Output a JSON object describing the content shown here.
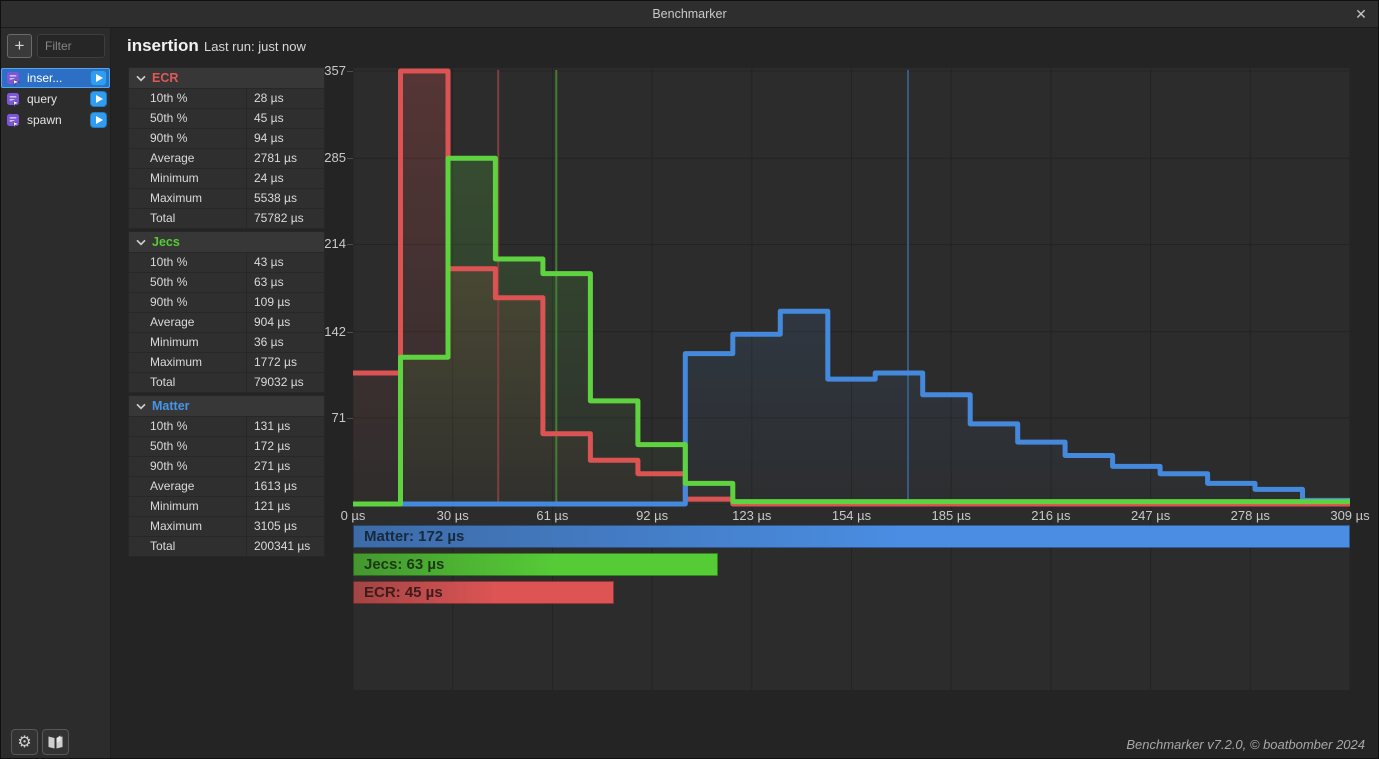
{
  "titlebar": {
    "title": "Benchmarker",
    "close_glyph": "✕"
  },
  "sidebar": {
    "add_label": "+",
    "filter_placeholder": "Filter",
    "item_icon": "benchmark-script-icon",
    "play_icon": "play-icon",
    "items": [
      {
        "label": "inser...",
        "selected": true
      },
      {
        "label": "query",
        "selected": false
      },
      {
        "label": "spawn",
        "selected": false
      }
    ]
  },
  "header": {
    "title": "insertion",
    "last_run": "Last run: just now"
  },
  "stats": {
    "row_labels": [
      "10th %",
      "50th %",
      "90th %",
      "Average",
      "Minimum",
      "Maximum",
      "Total"
    ],
    "sections": [
      {
        "name": "ECR",
        "color": "#e05858",
        "values": [
          "28 µs",
          "45 µs",
          "94 µs",
          "2781 µs",
          "24 µs",
          "5538 µs",
          "75782 µs"
        ]
      },
      {
        "name": "Jecs",
        "color": "#56cb33",
        "values": [
          "43 µs",
          "63 µs",
          "109 µs",
          "904 µs",
          "36 µs",
          "1772 µs",
          "79032 µs"
        ]
      },
      {
        "name": "Matter",
        "color": "#4596e8",
        "values": [
          "131 µs",
          "172 µs",
          "271 µs",
          "1613 µs",
          "121 µs",
          "3105 µs",
          "200341 µs"
        ]
      }
    ]
  },
  "chart_data": {
    "type": "histogram-step",
    "x_unit": "µs",
    "xlim": [
      0,
      309
    ],
    "ylim": [
      0,
      357
    ],
    "bin_count": 21,
    "bin_width_us": 14.71,
    "grid": true,
    "y_ticks": [
      {
        "value": 357,
        "label": "357"
      },
      {
        "value": 285,
        "label": "285"
      },
      {
        "value": 214,
        "label": "214"
      },
      {
        "value": 142,
        "label": "142"
      },
      {
        "value": 71,
        "label": "71"
      }
    ],
    "x_ticks": [
      {
        "us": 0,
        "label": "0 µs"
      },
      {
        "us": 30.9,
        "label": "30 µs"
      },
      {
        "us": 61.8,
        "label": "61 µs"
      },
      {
        "us": 92.7,
        "label": "92 µs"
      },
      {
        "us": 123.6,
        "label": "123 µs"
      },
      {
        "us": 154.5,
        "label": "154 µs"
      },
      {
        "us": 185.4,
        "label": "185 µs"
      },
      {
        "us": 216.3,
        "label": "216 µs"
      },
      {
        "us": 247.2,
        "label": "247 µs"
      },
      {
        "us": 278.1,
        "label": "278 µs"
      },
      {
        "us": 309,
        "label": "309 µs"
      }
    ],
    "series": [
      {
        "name": "ECR",
        "color": "#dc5353",
        "median_us": 45,
        "values": [
          108,
          357,
          194,
          170,
          58,
          36,
          25,
          4,
          0,
          0,
          0,
          0,
          0,
          0,
          0,
          0,
          0,
          0,
          0,
          0,
          0
        ]
      },
      {
        "name": "Jecs",
        "color": "#5fd33f",
        "median_us": 63,
        "values": [
          0,
          121,
          285,
          202,
          190,
          85,
          49,
          17,
          2,
          2,
          2,
          2,
          2,
          2,
          2,
          2,
          2,
          2,
          2,
          2,
          2
        ]
      },
      {
        "name": "Matter",
        "color": "#4589dc",
        "median_us": 172,
        "values": [
          0,
          0,
          0,
          0,
          0,
          0,
          0,
          124,
          140,
          159,
          103,
          108,
          90,
          66,
          51,
          40,
          31,
          25,
          17,
          12,
          3
        ]
      }
    ],
    "median_bars": [
      {
        "label": "Matter: 172 µs",
        "value_us": 172,
        "color": "#4a8de2"
      },
      {
        "label": "Jecs: 63 µs",
        "value_us": 63,
        "color": "#55cb36"
      },
      {
        "label": "ECR: 45 µs",
        "value_us": 45,
        "color": "#dd5454"
      }
    ]
  },
  "footer": {
    "settings_icon": "gear-icon",
    "docs_icon": "book-icon",
    "version": "Benchmarker v7.2.0, © boatbomber 2024"
  }
}
